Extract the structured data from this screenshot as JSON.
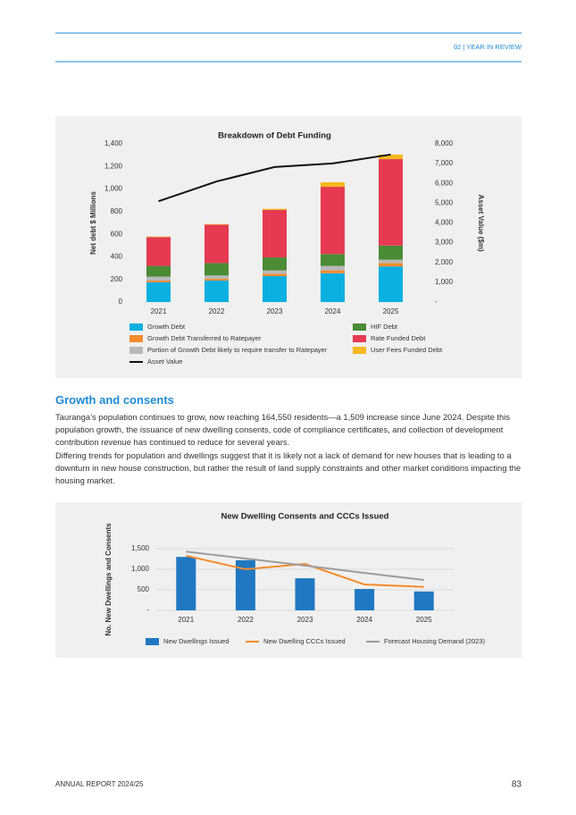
{
  "header": {
    "section": "02 | YEAR IN REVIEW"
  },
  "chart_data": [
    {
      "type": "bar",
      "stacked": true,
      "title": "Breakdown of Debt Funding",
      "y_label": "Net debt $ Millions",
      "y2_label": "Asset Value ($m)",
      "categories": [
        "2021",
        "2022",
        "2023",
        "2024",
        "2025"
      ],
      "ylim": [
        0,
        1400
      ],
      "yticks": [
        0,
        200,
        400,
        600,
        800,
        {
          "value": 1000,
          "label": "1,000"
        },
        {
          "value": 1200,
          "label": "1,200"
        },
        {
          "value": 1400,
          "label": "1,400"
        }
      ],
      "y2lim": [
        0,
        8000
      ],
      "y2ticks": [
        {
          "value": 0,
          "label": "-"
        },
        {
          "value": 1000,
          "label": "1,000"
        },
        {
          "value": 2000,
          "label": "2,000"
        },
        {
          "value": 3000,
          "label": "3,000"
        },
        {
          "value": 4000,
          "label": "4,000"
        },
        {
          "value": 5000,
          "label": "5,000"
        },
        {
          "value": 6000,
          "label": "6,000"
        },
        {
          "value": 7000,
          "label": "7,000"
        },
        {
          "value": 8000,
          "label": "8,000"
        }
      ],
      "grid": false,
      "series": [
        {
          "name": "Growth Debt",
          "type": "bar",
          "color": "#0bb0e0",
          "values": [
            175,
            190,
            230,
            255,
            315
          ]
        },
        {
          "name": "Growth Debt Transferred to Ratepayer",
          "type": "bar",
          "color": "#f68b2c",
          "values": [
            15,
            15,
            20,
            25,
            30
          ]
        },
        {
          "name": "Portion of Growth Debt likely to require transfer to Ratepayer",
          "type": "bar",
          "color": "#b9b9b9",
          "values": [
            35,
            30,
            30,
            40,
            30
          ]
        },
        {
          "name": "HIF Debt",
          "type": "bar",
          "color": "#4b8b35",
          "values": [
            95,
            110,
            115,
            105,
            125
          ]
        },
        {
          "name": "Rate Funded Debt",
          "type": "bar",
          "color": "#e63a52",
          "values": [
            255,
            340,
            420,
            595,
            765
          ]
        },
        {
          "name": "User Fees Funded Debt",
          "type": "bar",
          "color": "#f5b820",
          "values": [
            5,
            5,
            10,
            40,
            40
          ]
        },
        {
          "name": "Asset Value",
          "type": "line",
          "axis": "y2",
          "color": "#111111",
          "values": [
            5100,
            6100,
            6830,
            7010,
            7460
          ]
        }
      ]
    },
    {
      "type": "bar",
      "stacked": false,
      "title": "New Dwelling Consents and CCCs Issued",
      "y_label": "No. New Dwellings and Consents",
      "categories": [
        "2021",
        "2022",
        "2023",
        "2024",
        "2025"
      ],
      "ylim": [
        0,
        1500
      ],
      "yticks": [
        {
          "value": 0,
          "label": "-"
        },
        500,
        {
          "value": 1000,
          "label": "1,000"
        },
        {
          "value": 1500,
          "label": "1,500"
        }
      ],
      "grid": true,
      "series": [
        {
          "name": "New Dwellings Issued",
          "type": "bar",
          "color": "#1f78c1",
          "values": [
            1300,
            1220,
            780,
            520,
            460
          ]
        },
        {
          "name": "New Dwelling CCCs Issued",
          "type": "line",
          "color": "#f68b2c",
          "values": [
            1330,
            1000,
            1130,
            630,
            570
          ]
        },
        {
          "name": "Forecast Housing Demand (2023)",
          "type": "line",
          "color": "#9c9c9c",
          "values": [
            1430,
            1260,
            1090,
            910,
            740
          ]
        }
      ]
    }
  ],
  "section": {
    "heading": "Growth and consents",
    "paragraphs": [
      "Tauranga’s population continues to grow, now reaching 164,550 residents—a 1,509 increase since June 2024. Despite this population growth, the issuance of new dwelling consents, code of compliance certificates, and collection of development contribution revenue has continued to reduce for several years.",
      "Differing trends for population and dwellings suggest that it is likely not a lack of demand for new houses that is leading to a downturn in new house construction, but rather the result of land supply constraints and other market conditions impacting the housing market."
    ]
  },
  "footer": {
    "report": "ANNUAL REPORT 2024/25",
    "page": "83"
  }
}
